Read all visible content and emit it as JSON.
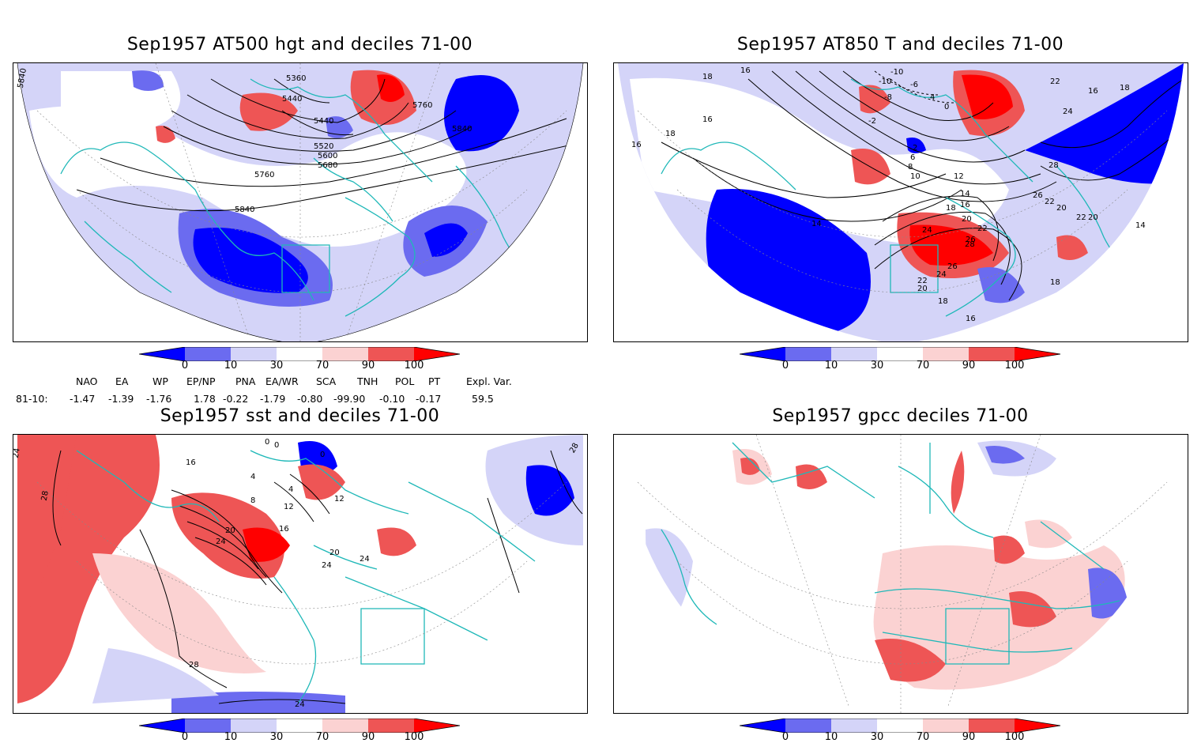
{
  "panels": [
    {
      "title": "Sep1957 AT500 hgt and deciles 71-00",
      "contour_labels": [
        "5840",
        "5360",
        "5440",
        "5760",
        "5440",
        "5520",
        "5600",
        "5680",
        "5840",
        "5760",
        "5840"
      ]
    },
    {
      "title": "Sep1957 AT850 T and deciles 71-00",
      "contour_labels": [
        "18",
        "16",
        "16",
        "18",
        "16",
        "-10",
        "-10",
        "-6",
        "-8",
        "4",
        "-2",
        "0",
        "2",
        "6",
        "8",
        "10",
        "12",
        "14",
        "16",
        "18",
        "20",
        "22",
        "24",
        "26",
        "28",
        "26",
        "24",
        "22",
        "20",
        "18",
        "16",
        "14",
        "20",
        "22",
        "24",
        "16",
        "18",
        "22",
        "28",
        "26",
        "22",
        "20",
        "14",
        "18"
      ]
    },
    {
      "title": "Sep1957 sst and deciles 71-00",
      "contour_labels": [
        "24",
        "28",
        "16",
        "0",
        "0",
        "0",
        "4",
        "4",
        "8",
        "12",
        "16",
        "20",
        "24",
        "20",
        "24",
        "24",
        "12",
        "28",
        "24",
        "28"
      ]
    },
    {
      "title": "Sep1957 gpcc deciles 71-00",
      "contour_labels": []
    }
  ],
  "colorbar": {
    "ticks": [
      "0",
      "10",
      "30",
      "70",
      "90",
      "100"
    ],
    "colors": [
      "#0000ff",
      "#6b6bf0",
      "#d4d4f8",
      "#ffffff",
      "#fbd2d2",
      "#ee5555",
      "#ff0000"
    ]
  },
  "indices": {
    "headers": [
      "NAO",
      "EA",
      "WP",
      "EP/NP",
      "PNA",
      "EA/WR",
      "SCA",
      "TNH",
      "POL",
      "PT",
      "Expl. Var."
    ],
    "row_label": "81-10:",
    "values": [
      "-1.47",
      "-1.39",
      "-1.76",
      "1.78",
      "-0.22",
      "-1.79",
      "-0.80",
      "-99.90",
      "-0.10",
      "-0.17",
      "59.5"
    ]
  },
  "colors": {
    "coast": "#1fb8b8",
    "contour": "#000000",
    "grid": "#888888"
  }
}
